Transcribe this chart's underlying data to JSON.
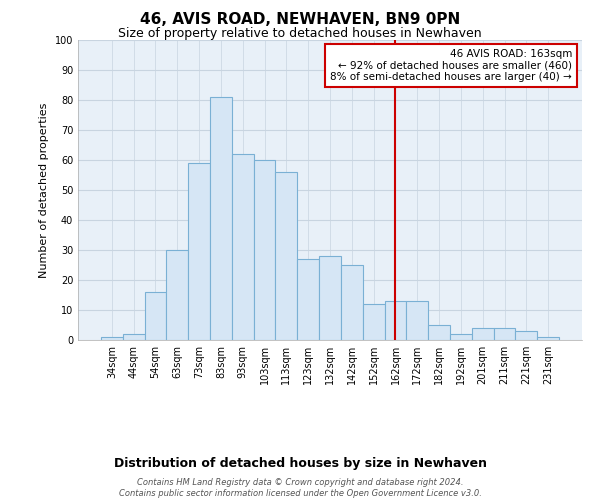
{
  "title": "46, AVIS ROAD, NEWHAVEN, BN9 0PN",
  "subtitle": "Size of property relative to detached houses in Newhaven",
  "xlabel": "Distribution of detached houses by size in Newhaven",
  "ylabel": "Number of detached properties",
  "bar_labels": [
    "34sqm",
    "44sqm",
    "54sqm",
    "63sqm",
    "73sqm",
    "83sqm",
    "93sqm",
    "103sqm",
    "113sqm",
    "123sqm",
    "132sqm",
    "142sqm",
    "152sqm",
    "162sqm",
    "172sqm",
    "182sqm",
    "192sqm",
    "201sqm",
    "211sqm",
    "221sqm",
    "231sqm"
  ],
  "bar_heights": [
    1,
    2,
    16,
    30,
    59,
    81,
    62,
    60,
    56,
    27,
    28,
    25,
    12,
    13,
    13,
    5,
    2,
    4,
    4,
    3,
    1
  ],
  "bar_color": "#d6e6f5",
  "bar_edge_color": "#7ab0d4",
  "vline_index": 13,
  "vline_color": "#cc0000",
  "ylim": [
    0,
    100
  ],
  "yticks": [
    0,
    10,
    20,
    30,
    40,
    50,
    60,
    70,
    80,
    90,
    100
  ],
  "annotation_title": "46 AVIS ROAD: 163sqm",
  "annotation_line1": "← 92% of detached houses are smaller (460)",
  "annotation_line2": "8% of semi-detached houses are larger (40) →",
  "annotation_box_color": "#ffffff",
  "annotation_box_edge": "#cc0000",
  "footer_line1": "Contains HM Land Registry data © Crown copyright and database right 2024.",
  "footer_line2": "Contains public sector information licensed under the Open Government Licence v3.0.",
  "background_color": "#ffffff",
  "plot_bg_color": "#e8f0f8",
  "grid_color": "#c8d4e0"
}
